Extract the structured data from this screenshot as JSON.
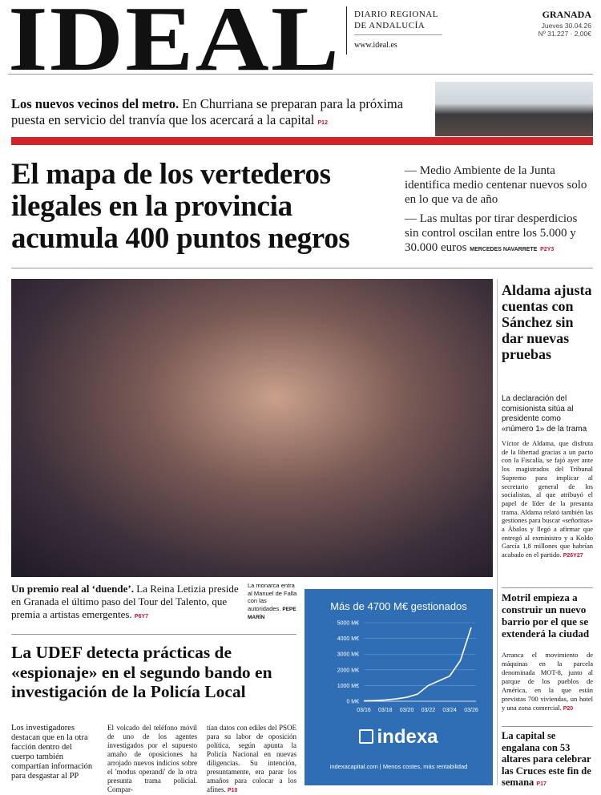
{
  "masthead": {
    "logo": "IDEAL",
    "tagline_1": "DIARIO REGIONAL",
    "tagline_2": "DE ANDALUCÍA",
    "website": "www.ideal.es",
    "edition": "GRANADA",
    "date": "Jueves 30.04.26",
    "number": "Nº 31.227 · 2,00€"
  },
  "teaser": {
    "lead": "Los nuevos vecinos del metro.",
    "text": "En Churriana se preparan para la próxima puesta en servicio del tranvía que los acercará a la capital",
    "ref": "P12"
  },
  "main_story": {
    "headline": "El mapa de los vertederos ilegales en la provincia acumula 400 puntos negros",
    "bullet_1": "Medio Ambiente de la Junta identifica medio centenar nuevos solo en lo que va de año",
    "bullet_2": "Las multas por tirar desperdicios sin control oscilan entre los 5.000 y 30.000 euros",
    "byline": "MERCEDES NAVARRETE",
    "ref": "P2Y3"
  },
  "photo": {
    "lead": "Un premio real al ‘duende’.",
    "caption": "La Reina Letizia preside en Granada el último paso del Tour del Talento, que premia a artistas emergentes.",
    "ref": "P6Y7",
    "side_caption": "La monarca entra al Manuel de Falla con las autoridades.",
    "credit": "PEPE MARÍN"
  },
  "aldama": {
    "headline": "Aldama ajusta cuentas con Sánchez sin dar nuevas pruebas",
    "subhead": "La declaración del comisionista sitúa al presidente como «número 1» de la trama",
    "body": "Víctor de Aldama, que disfruta de la libertad gracias a un pacto con la Fiscalía, se fajó ayer ante los magistrados del Tribunal Supremo para implicar al secretario general de los socialistas, al que atribuyó el papel de líder de la presunta trama. Aldama relató también las gestiones para buscar «señoritas» a Ábalos y llegó a afirmar que entregó al exministro y a Koldo García 1,8 millones que habrían acabado en el partido.",
    "ref": "P26Y27"
  },
  "udef": {
    "headline": "La UDEF detecta prácticas de «espionaje» en el segundo bando en investigación de la Policía Local",
    "col_1": "Los investigadores destacan que en la otra facción dentro del cuerpo también compartían información para desgastar al PP",
    "col_2": "El volcado del teléfono móvil de uno de los agentes investigados por el supuesto amaño de oposiciones ha arrojado nuevos indicios sobre el 'modus operandi' de la otra presunta trama policial. Compar-",
    "col_3": "tían datos con ediles del PSOE para su labor de oposición política, según apunta la Policía Nacional en nuevas diligencias. Su intención, presuntamente, era parar los amaños para colocar a los afines.",
    "ref": "P10"
  },
  "ad": {
    "title": "Más de 4700 M€ gestionados",
    "brand": "indexa",
    "footer": "indexacapital.com | Menos costes, más rentabilidad",
    "chart": {
      "type": "line",
      "categories": [
        "03/16",
        null,
        "03/18",
        null,
        "03/20",
        null,
        "03/22",
        null,
        "03/24",
        null,
        "03/26"
      ],
      "values": [
        20,
        40,
        80,
        150,
        250,
        450,
        1000,
        1300,
        1600,
        2600,
        4700
      ],
      "color": "#ffffff",
      "ylim": [
        0,
        5000
      ],
      "yticks": [
        {
          "value": 0,
          "label": "0 M€"
        },
        {
          "value": 1000,
          "label": "1000 M€"
        },
        {
          "value": 2000,
          "label": "2000 M€"
        },
        {
          "value": 3000,
          "label": "3000 M€"
        },
        {
          "value": 4000,
          "label": "4000 M€"
        },
        {
          "value": 5000,
          "label": "5000 M€"
        }
      ],
      "grid": true
    }
  },
  "motril": {
    "headline": "Motril empieza a construir un nuevo barrio por el que se extenderá la ciudad",
    "body": "Arranca el movimiento de máquinas en la parcela denominada MOT-8, junto al parque de los pueblos de América, en la que están previstas 700 viviendas, un hotel y una zona comercial.",
    "ref": "P20"
  },
  "cruces": {
    "headline": "La capital se engalana con 53 altares para celebrar las Cruces este fin de semana",
    "ref": "P17"
  }
}
